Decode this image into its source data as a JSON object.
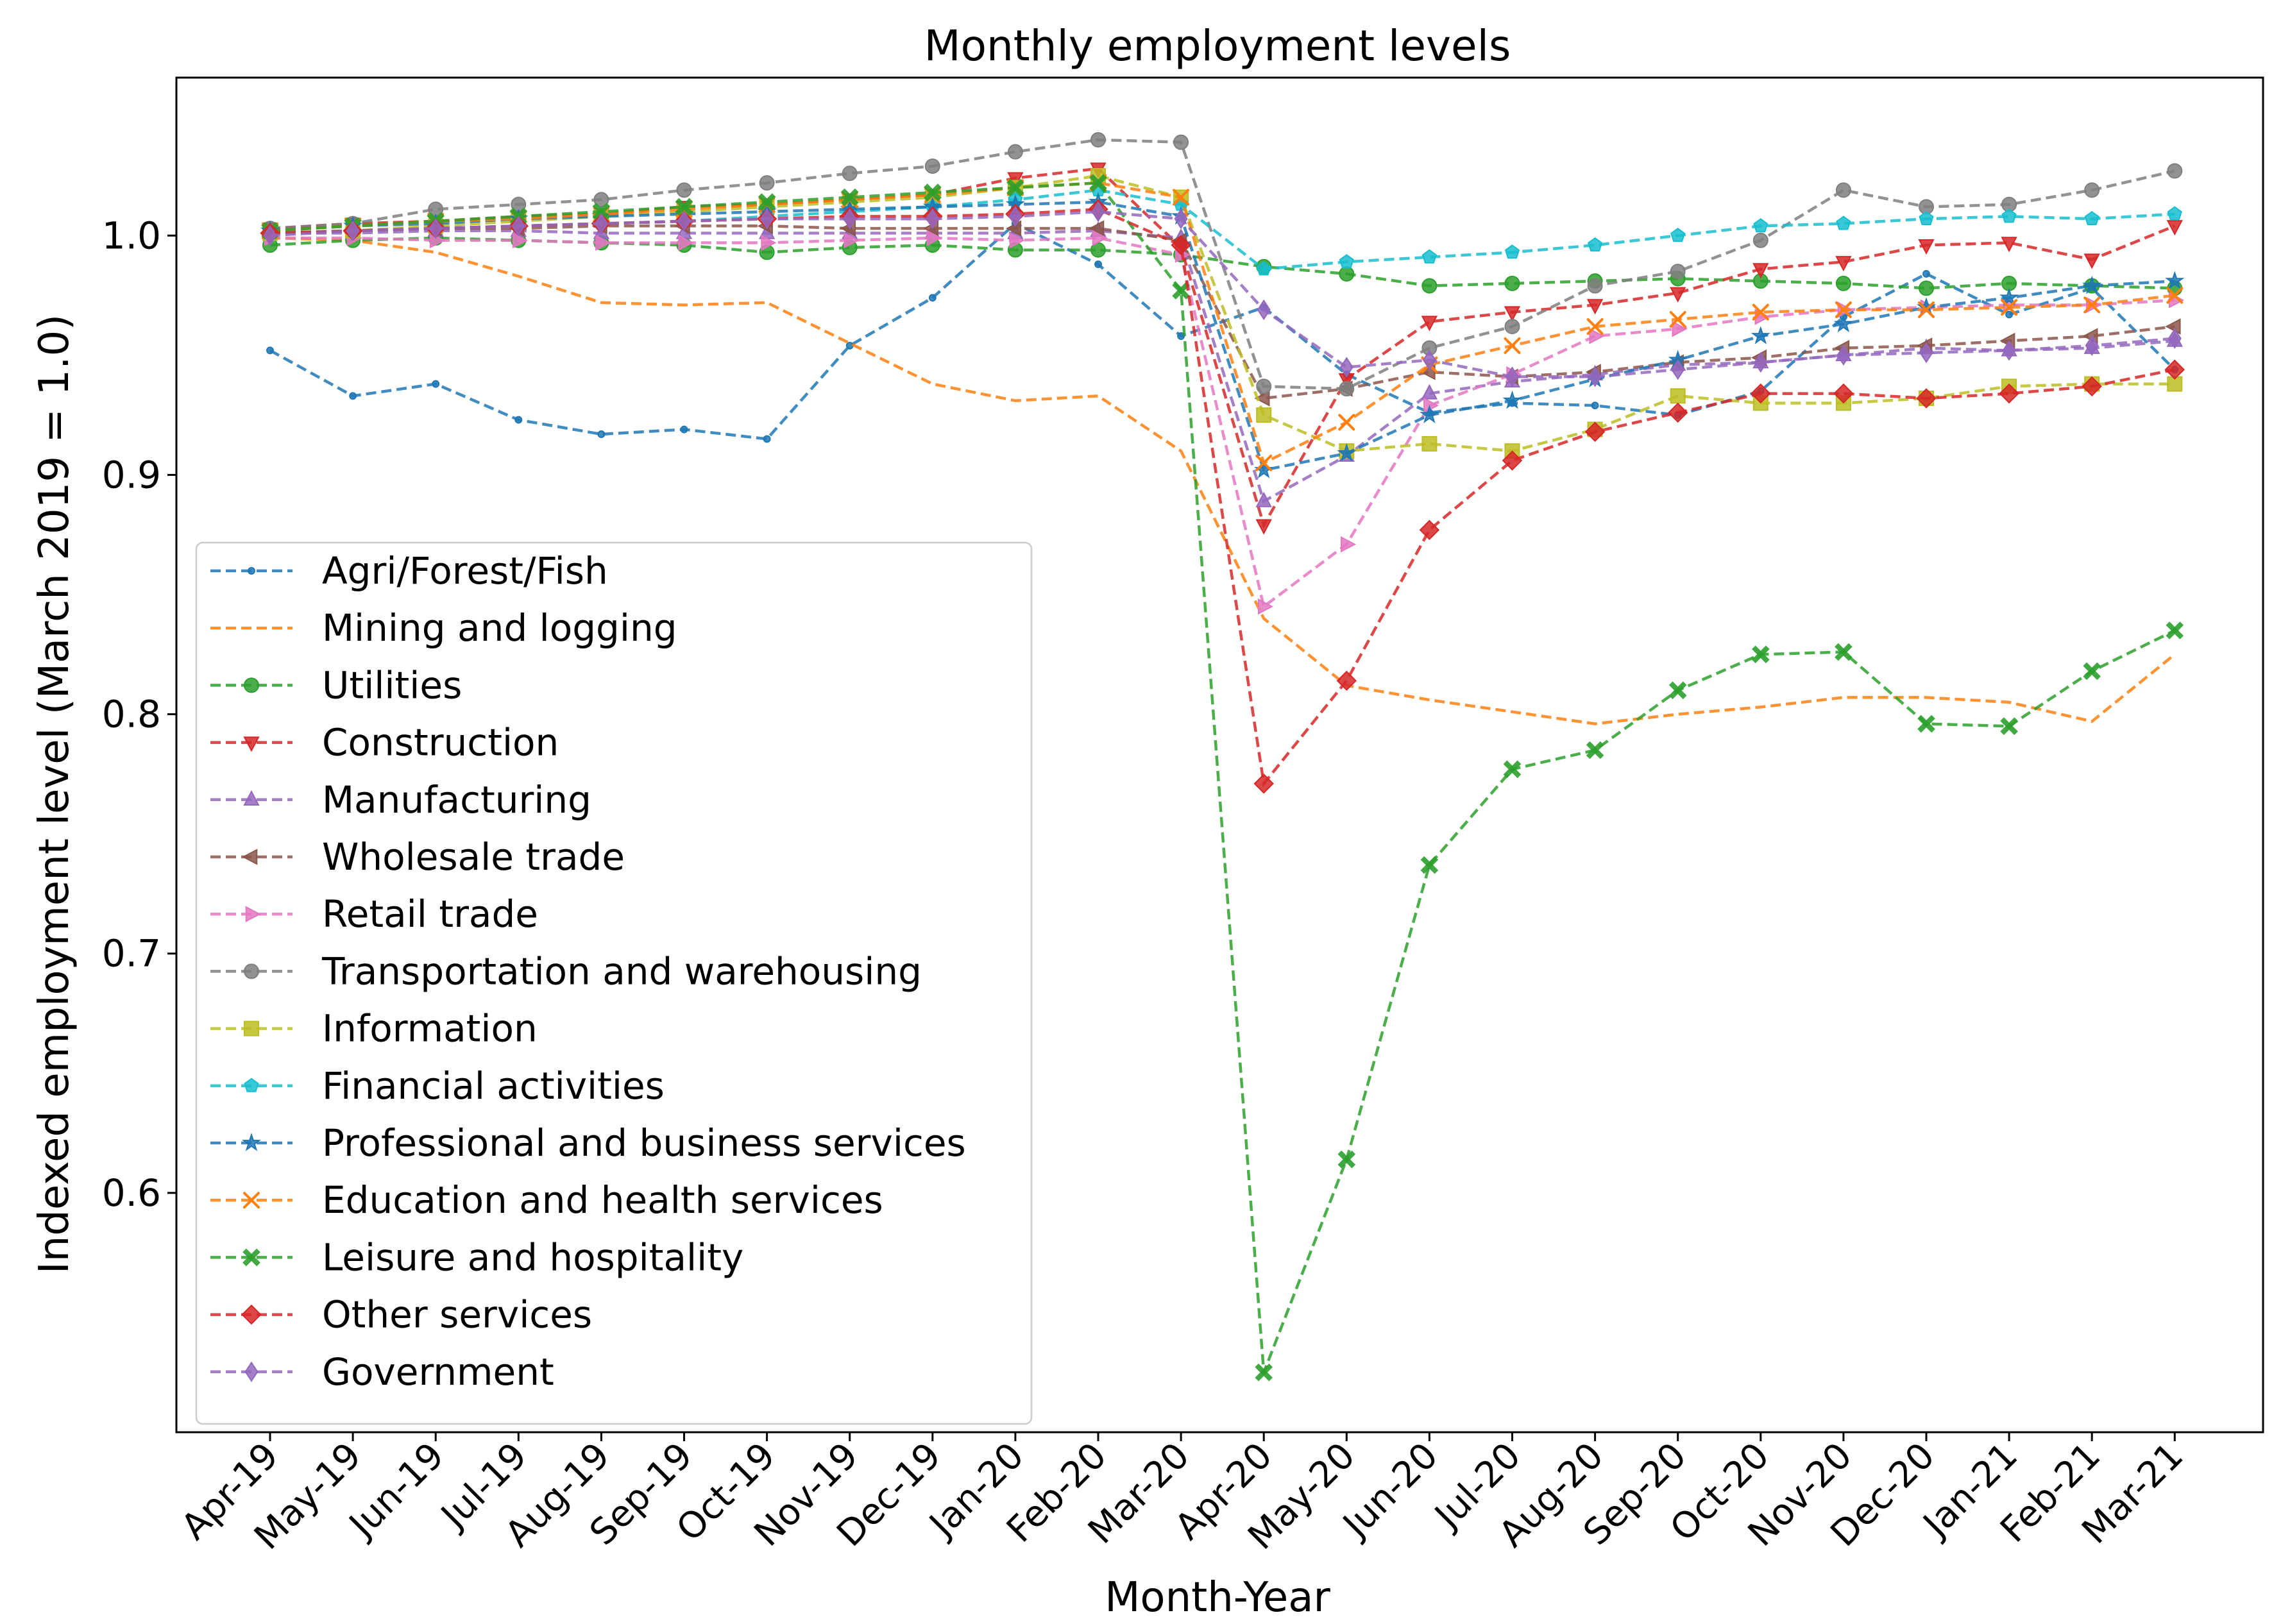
{
  "chart_data": {
    "type": "line",
    "title": "Monthly employment levels",
    "xlabel": "Month-Year",
    "ylabel": "Indexed employment level (March 2019 = 1.0)",
    "ylim": [
      0.5,
      1.066
    ],
    "yticks": [
      0.6,
      0.7,
      0.8,
      0.9,
      1.0
    ],
    "ytick_labels": [
      "0.6",
      "0.7",
      "0.8",
      "0.9",
      "1.0"
    ],
    "grid": false,
    "legend_position": "lower-left",
    "categories": [
      "Apr-19",
      "May-19",
      "Jun-19",
      "Jul-19",
      "Aug-19",
      "Sep-19",
      "Oct-19",
      "Nov-19",
      "Dec-19",
      "Jan-20",
      "Feb-20",
      "Mar-20",
      "Apr-20",
      "May-20",
      "Jun-20",
      "Jul-20",
      "Aug-20",
      "Sep-20",
      "Oct-20",
      "Nov-20",
      "Dec-20",
      "Jan-21",
      "Feb-21",
      "Mar-21"
    ],
    "series": [
      {
        "name": "Agri/Forest/Fish",
        "color": "#1f77b4",
        "marker": "point",
        "values": [
          0.952,
          0.933,
          0.938,
          0.923,
          0.917,
          0.919,
          0.915,
          0.954,
          0.974,
          1.005,
          0.988,
          0.958,
          0.97,
          0.942,
          0.926,
          0.93,
          0.929,
          0.925,
          0.935,
          0.966,
          0.984,
          0.967,
          0.978,
          0.944
        ]
      },
      {
        "name": "Mining and logging",
        "color": "#ff7f0e",
        "marker": "none",
        "values": [
          0.999,
          0.998,
          0.993,
          0.983,
          0.972,
          0.971,
          0.972,
          0.955,
          0.938,
          0.931,
          0.933,
          0.91,
          0.84,
          0.812,
          0.806,
          0.801,
          0.796,
          0.8,
          0.803,
          0.807,
          0.807,
          0.805,
          0.797,
          0.825
        ]
      },
      {
        "name": "Utilities",
        "color": "#2ca02c",
        "marker": "circle",
        "values": [
          0.996,
          0.998,
          0.999,
          0.998,
          0.997,
          0.996,
          0.993,
          0.995,
          0.996,
          0.994,
          0.994,
          0.992,
          0.987,
          0.984,
          0.979,
          0.98,
          0.981,
          0.982,
          0.981,
          0.98,
          0.978,
          0.98,
          0.979,
          0.978
        ]
      },
      {
        "name": "Construction",
        "color": "#d62728",
        "marker": "triangle_down",
        "values": [
          1.003,
          1.005,
          1.006,
          1.008,
          1.009,
          1.012,
          1.013,
          1.015,
          1.017,
          1.024,
          1.028,
          0.995,
          0.879,
          0.94,
          0.964,
          0.968,
          0.971,
          0.976,
          0.986,
          0.989,
          0.996,
          0.997,
          0.99,
          1.004
        ]
      },
      {
        "name": "Manufacturing",
        "color": "#9467bd",
        "marker": "triangle_up",
        "values": [
          1.001,
          1.001,
          1.002,
          1.002,
          1.001,
          1.001,
          1.001,
          1.001,
          1.001,
          1.001,
          1.002,
          0.999,
          0.889,
          0.908,
          0.934,
          0.939,
          0.942,
          0.946,
          0.947,
          0.95,
          0.953,
          0.952,
          0.953,
          0.956
        ]
      },
      {
        "name": "Wholesale trade",
        "color": "#8c564b",
        "marker": "triangle_left",
        "values": [
          1.001,
          1.002,
          1.003,
          1.003,
          1.004,
          1.004,
          1.004,
          1.003,
          1.003,
          1.003,
          1.003,
          0.998,
          0.932,
          0.936,
          0.943,
          0.941,
          0.943,
          0.947,
          0.949,
          0.953,
          0.954,
          0.956,
          0.958,
          0.962
        ]
      },
      {
        "name": "Retail trade",
        "color": "#e377c2",
        "marker": "triangle_right",
        "values": [
          0.999,
          0.999,
          0.998,
          0.998,
          0.997,
          0.997,
          0.997,
          0.998,
          0.999,
          0.998,
          0.999,
          0.992,
          0.845,
          0.871,
          0.929,
          0.942,
          0.958,
          0.961,
          0.966,
          0.969,
          0.97,
          0.971,
          0.971,
          0.973
        ]
      },
      {
        "name": "Transportation and warehousing",
        "color": "#7f7f7f",
        "marker": "circle",
        "values": [
          1.003,
          1.005,
          1.011,
          1.013,
          1.015,
          1.019,
          1.022,
          1.026,
          1.029,
          1.035,
          1.04,
          1.039,
          0.937,
          0.936,
          0.953,
          0.962,
          0.979,
          0.985,
          0.998,
          1.019,
          1.012,
          1.013,
          1.019,
          1.027
        ]
      },
      {
        "name": "Information",
        "color": "#bcbd22",
        "marker": "square",
        "values": [
          1.001,
          1.002,
          1.004,
          1.006,
          1.008,
          1.01,
          1.012,
          1.014,
          1.016,
          1.02,
          1.025,
          1.016,
          0.925,
          0.91,
          0.913,
          0.91,
          0.919,
          0.933,
          0.93,
          0.93,
          0.932,
          0.937,
          0.938,
          0.938
        ]
      },
      {
        "name": "Financial activities",
        "color": "#17becf",
        "marker": "pentagon",
        "values": [
          1.001,
          1.002,
          1.003,
          1.004,
          1.005,
          1.006,
          1.008,
          1.01,
          1.012,
          1.015,
          1.019,
          1.013,
          0.986,
          0.989,
          0.991,
          0.993,
          0.996,
          1.0,
          1.004,
          1.005,
          1.007,
          1.008,
          1.007,
          1.009
        ]
      },
      {
        "name": "Professional and business services",
        "color": "#1f77b4",
        "marker": "star",
        "values": [
          1.002,
          1.004,
          1.005,
          1.007,
          1.008,
          1.009,
          1.01,
          1.011,
          1.012,
          1.013,
          1.014,
          1.008,
          0.902,
          0.909,
          0.925,
          0.931,
          0.94,
          0.948,
          0.958,
          0.963,
          0.97,
          0.974,
          0.979,
          0.981
        ]
      },
      {
        "name": "Education and health services",
        "color": "#ff7f0e",
        "marker": "x",
        "values": [
          1.002,
          1.004,
          1.006,
          1.007,
          1.009,
          1.011,
          1.013,
          1.015,
          1.017,
          1.02,
          1.022,
          1.016,
          0.905,
          0.922,
          0.946,
          0.954,
          0.962,
          0.965,
          0.968,
          0.969,
          0.969,
          0.97,
          0.971,
          0.975
        ]
      },
      {
        "name": "Leisure and hospitality",
        "color": "#2ca02c",
        "marker": "x_filled",
        "values": [
          1.002,
          1.004,
          1.006,
          1.008,
          1.01,
          1.012,
          1.014,
          1.016,
          1.018,
          1.02,
          1.022,
          0.977,
          0.525,
          0.614,
          0.737,
          0.777,
          0.785,
          0.81,
          0.825,
          0.826,
          0.796,
          0.795,
          0.818,
          0.835
        ]
      },
      {
        "name": "Other services",
        "color": "#d62728",
        "marker": "diamond",
        "values": [
          1.001,
          1.002,
          1.003,
          1.004,
          1.005,
          1.006,
          1.007,
          1.008,
          1.008,
          1.009,
          1.011,
          0.996,
          0.771,
          0.814,
          0.877,
          0.906,
          0.918,
          0.926,
          0.934,
          0.934,
          0.932,
          0.934,
          0.937,
          0.944
        ]
      },
      {
        "name": "Government",
        "color": "#9467bd",
        "marker": "thin_diamond",
        "values": [
          1.0,
          1.002,
          1.003,
          1.004,
          1.005,
          1.006,
          1.007,
          1.007,
          1.007,
          1.008,
          1.01,
          1.007,
          0.969,
          0.945,
          0.948,
          0.941,
          0.941,
          0.944,
          0.947,
          0.95,
          0.951,
          0.952,
          0.954,
          0.957
        ]
      }
    ]
  }
}
